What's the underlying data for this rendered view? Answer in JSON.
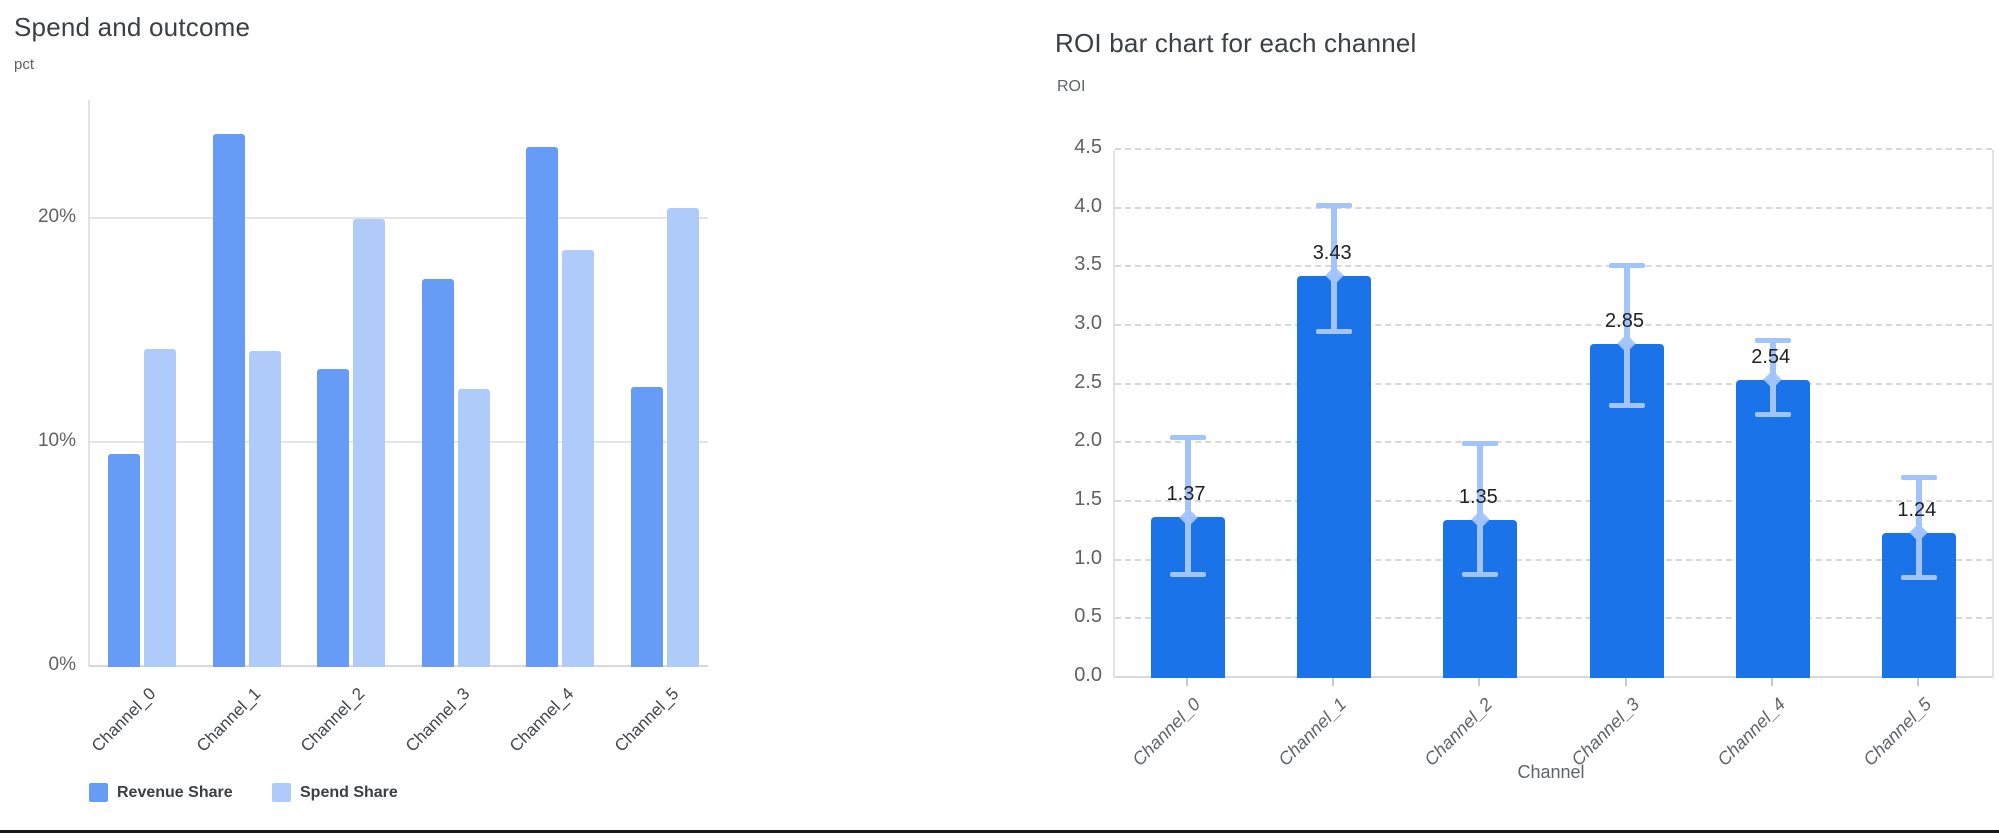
{
  "chart_data": [
    {
      "type": "bar",
      "title": "Spend and outcome",
      "y_unit": "pct",
      "categories": [
        "Channel_0",
        "Channel_1",
        "Channel_2",
        "Channel_3",
        "Channel_4",
        "Channel_5"
      ],
      "series": [
        {
          "name": "Revenue Share",
          "color": "#669cf6",
          "values": [
            9.5,
            23.8,
            13.3,
            17.3,
            23.2,
            12.5
          ]
        },
        {
          "name": "Spend Share",
          "color": "#aecbfa",
          "values": [
            14.2,
            14.1,
            20.0,
            12.4,
            18.6,
            20.5
          ]
        }
      ],
      "value_format": "percent",
      "y_ticks": [
        {
          "label": "0%",
          "v": 0
        },
        {
          "label": "10%",
          "v": 10
        },
        {
          "label": "20%",
          "v": 20
        }
      ],
      "ylim": [
        0,
        25.3
      ],
      "grid": true,
      "legend_position": "bottom"
    },
    {
      "type": "bar",
      "title": "ROI bar chart for each channel",
      "ylabel": "ROI",
      "xlabel": "Channel",
      "categories": [
        "Channel_0",
        "Channel_1",
        "Channel_2",
        "Channel_3",
        "Channel_4",
        "Channel_5"
      ],
      "values": [
        1.37,
        3.43,
        1.35,
        2.85,
        2.54,
        1.24
      ],
      "point_labels": [
        "1.37",
        "3.43",
        "1.35",
        "2.85",
        "2.54",
        "1.24"
      ],
      "error_low": [
        0.89,
        2.96,
        0.89,
        2.33,
        2.25,
        0.86
      ],
      "error_high": [
        2.05,
        4.03,
        2.0,
        3.52,
        2.88,
        1.71
      ],
      "bar_color": "#1a73e8",
      "error_color": "#a3c4fa",
      "y_ticks": [
        {
          "label": "0.0",
          "v": 0.0
        },
        {
          "label": "0.5",
          "v": 0.5
        },
        {
          "label": "1.0",
          "v": 1.0
        },
        {
          "label": "1.5",
          "v": 1.5
        },
        {
          "label": "2.0",
          "v": 2.0
        },
        {
          "label": "2.5",
          "v": 2.5
        },
        {
          "label": "3.0",
          "v": 3.0
        },
        {
          "label": "3.5",
          "v": 3.5
        },
        {
          "label": "4.0",
          "v": 4.0
        },
        {
          "label": "4.5",
          "v": 4.5
        }
      ],
      "ylim": [
        0,
        4.5
      ],
      "grid": true
    }
  ]
}
